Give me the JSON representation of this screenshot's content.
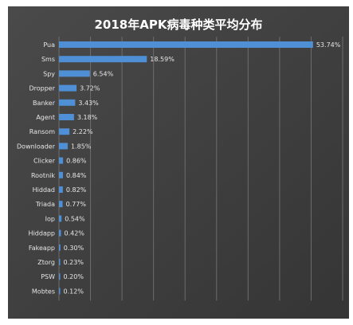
{
  "chart_data": {
    "type": "bar",
    "orientation": "horizontal",
    "title": "2018年APK病毒种类平均分布",
    "categories": [
      "Pua",
      "Sms",
      "Spy",
      "Dropper",
      "Banker",
      "Agent",
      "Ransom",
      "Downloader",
      "Clicker",
      "Rootnik",
      "Hiddad",
      "Triada",
      "Iop",
      "Hiddapp",
      "Fakeapp",
      "Ztorg",
      "PSW",
      "Mobtes"
    ],
    "values": [
      53.74,
      18.59,
      6.54,
      3.72,
      3.43,
      3.18,
      2.22,
      1.85,
      0.86,
      0.84,
      0.82,
      0.77,
      0.54,
      0.42,
      0.3,
      0.23,
      0.2,
      0.12
    ],
    "value_labels": [
      "53.74%",
      "18.59%",
      "6.54%",
      "3.72%",
      "3.43%",
      "3.18%",
      "2.22%",
      "1.85%",
      "0.86%",
      "0.84%",
      "0.82%",
      "0.77%",
      "0.54%",
      "0.42%",
      "0.30%",
      "0.23%",
      "0.20%",
      "0.12%"
    ],
    "xlim": [
      0,
      60
    ],
    "grid": "vertical",
    "bar_color": "#4f8fd6",
    "background_color": "#3f3f3f"
  }
}
